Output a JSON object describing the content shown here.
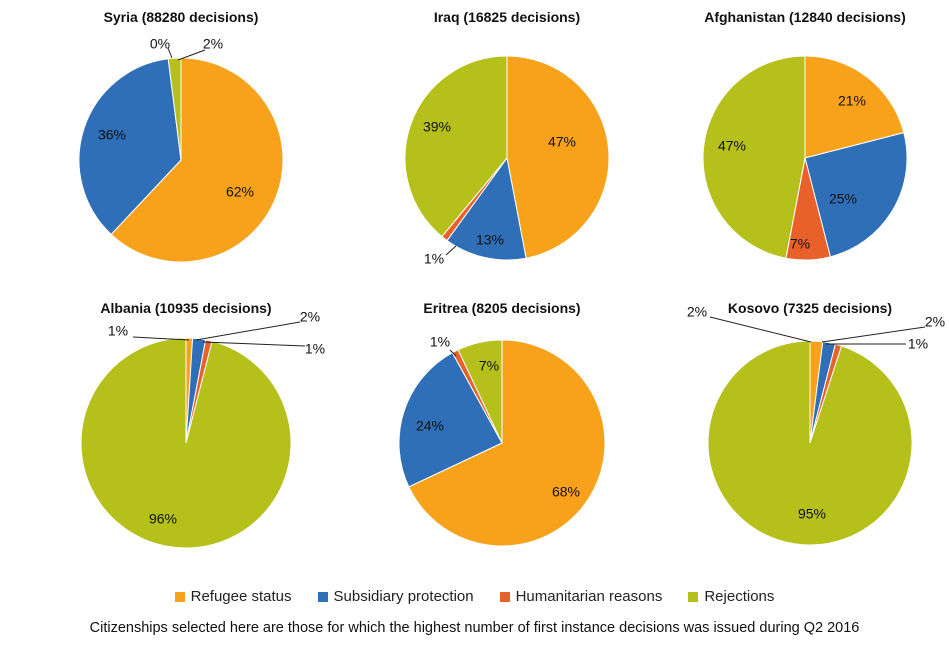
{
  "colors": {
    "refugee": "#F7A21A",
    "subsidiary": "#2E6FB7",
    "humanitarian": "#E8602A",
    "rejections": "#B5C01A"
  },
  "legend": [
    {
      "key": "refugee",
      "label": "Refugee  status"
    },
    {
      "key": "subsidiary",
      "label": "Subsidiary protection"
    },
    {
      "key": "humanitarian",
      "label": "Humanitarian reasons"
    },
    {
      "key": "rejections",
      "label": "Rejections"
    }
  ],
  "footnote": "Citizenships selected here are those for which the highest number of first instance decisions was issued during Q2 2016",
  "chart_data": [
    {
      "type": "pie",
      "title": "Syria (88280 decisions)",
      "slices": [
        {
          "key": "refugee",
          "value": 62,
          "label": "62%"
        },
        {
          "key": "subsidiary",
          "value": 36,
          "label": "36%"
        },
        {
          "key": "humanitarian",
          "value": 0,
          "label": "0%"
        },
        {
          "key": "rejections",
          "value": 2,
          "label": "2%"
        }
      ]
    },
    {
      "type": "pie",
      "title": "Iraq (16825 decisions)",
      "slices": [
        {
          "key": "refugee",
          "value": 47,
          "label": "47%"
        },
        {
          "key": "subsidiary",
          "value": 13,
          "label": "13%"
        },
        {
          "key": "humanitarian",
          "value": 1,
          "label": "1%"
        },
        {
          "key": "rejections",
          "value": 39,
          "label": "39%"
        }
      ]
    },
    {
      "type": "pie",
      "title": "Afghanistan (12840 decisions)",
      "slices": [
        {
          "key": "refugee",
          "value": 21,
          "label": "21%"
        },
        {
          "key": "subsidiary",
          "value": 25,
          "label": "25%"
        },
        {
          "key": "humanitarian",
          "value": 7,
          "label": "7%"
        },
        {
          "key": "rejections",
          "value": 47,
          "label": "47%"
        }
      ]
    },
    {
      "type": "pie",
      "title": "Albania (10935 decisions)",
      "slices": [
        {
          "key": "refugee",
          "value": 1,
          "label": "1%"
        },
        {
          "key": "subsidiary",
          "value": 2,
          "label": "2%"
        },
        {
          "key": "humanitarian",
          "value": 1,
          "label": "1%"
        },
        {
          "key": "rejections",
          "value": 96,
          "label": "96%"
        }
      ]
    },
    {
      "type": "pie",
      "title": "Eritrea (8205 decisions)",
      "slices": [
        {
          "key": "refugee",
          "value": 68,
          "label": "68%"
        },
        {
          "key": "subsidiary",
          "value": 24,
          "label": "24%"
        },
        {
          "key": "humanitarian",
          "value": 1,
          "label": "1%"
        },
        {
          "key": "rejections",
          "value": 7,
          "label": "7%"
        }
      ]
    },
    {
      "type": "pie",
      "title": "Kosovo (7325 decisions)",
      "slices": [
        {
          "key": "refugee",
          "value": 2,
          "label": "2%"
        },
        {
          "key": "subsidiary",
          "value": 2,
          "label": "2%"
        },
        {
          "key": "humanitarian",
          "value": 1,
          "label": "1%"
        },
        {
          "key": "rejections",
          "value": 95,
          "label": "95%"
        }
      ]
    }
  ]
}
